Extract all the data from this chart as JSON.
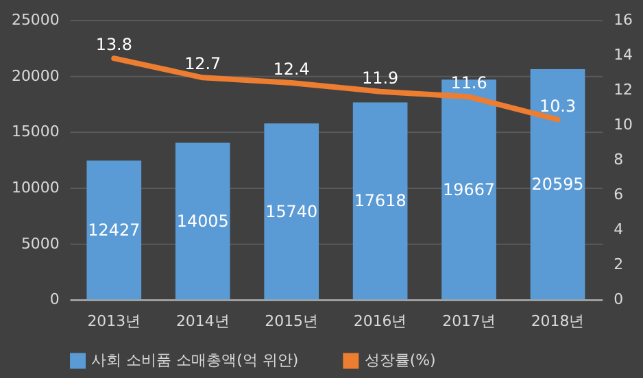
{
  "chart_data": {
    "type": "bar",
    "categories": [
      "2013년",
      "2014년",
      "2015년",
      "2016년",
      "2017년",
      "2018년"
    ],
    "series": [
      {
        "name": "사회 소비품 소매총액(억 위안)",
        "color": "#5b9bd5",
        "values": [
          12427,
          14005,
          15740,
          17618,
          19667,
          20595
        ]
      },
      {
        "name": "성장률(%)",
        "type": "line",
        "axis": "y2",
        "color": "#ed7d31",
        "values": [
          13.8,
          12.7,
          12.4,
          11.9,
          11.6,
          10.3
        ]
      }
    ],
    "ylim": [
      0,
      25000
    ],
    "yticks": [
      0,
      5000,
      10000,
      15000,
      20000,
      25000
    ],
    "y2lim": [
      0,
      16
    ],
    "y2ticks": [
      0,
      2,
      4,
      6,
      8,
      10,
      12,
      14,
      16
    ],
    "grid": "y",
    "legend": "bottom",
    "data_labels": true,
    "marker": "none",
    "line_style": "solid"
  }
}
